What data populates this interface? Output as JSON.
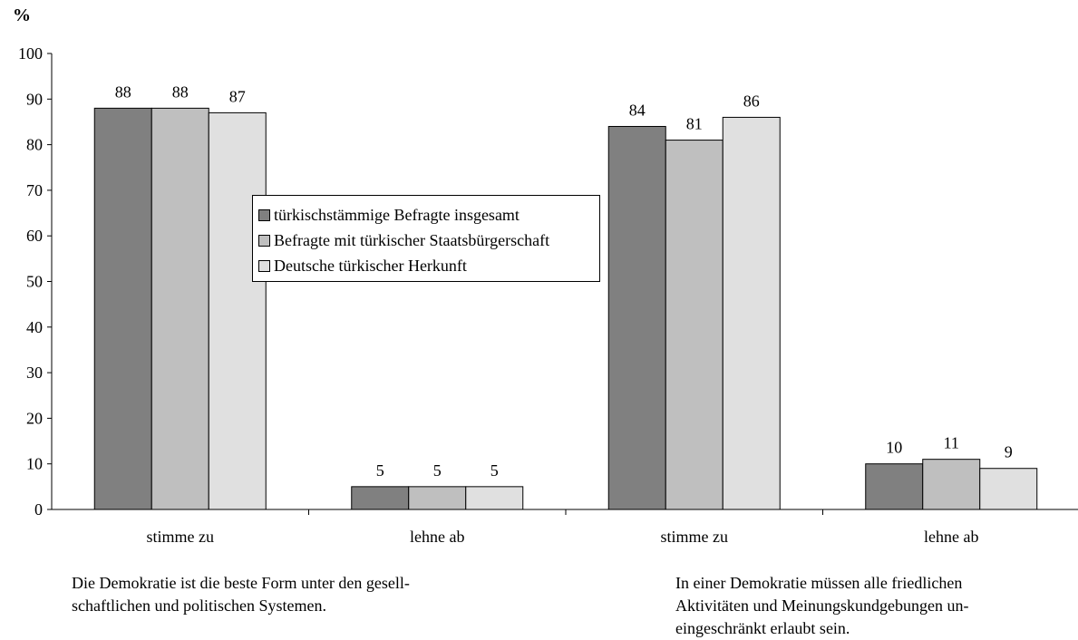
{
  "chart_data": {
    "type": "bar",
    "ylabel": "%",
    "ylim": [
      0,
      100
    ],
    "yticks": [
      "0",
      "10",
      "20",
      "30",
      "40",
      "50",
      "60",
      "70",
      "80",
      "90",
      "100"
    ],
    "categories": [
      "stimme zu",
      "lehne ab",
      "stimme zu",
      "lehne ab"
    ],
    "series": [
      {
        "name": "türkischstämmige Befragte insgesamt",
        "color": "#808080",
        "values": [
          88,
          5,
          84,
          10
        ]
      },
      {
        "name": "Befragte mit türkischer Staatsbürgerschaft",
        "color": "#bfbfbf",
        "values": [
          88,
          5,
          81,
          11
        ]
      },
      {
        "name": "Deutsche türkischer Herkunft",
        "color": "#e0e0e0",
        "values": [
          87,
          5,
          86,
          9
        ]
      }
    ],
    "legend_position": "center",
    "grid": false,
    "captions": [
      "Die Demokratie ist die beste Form unter den gesell-\nschaftlichen und politischen Systemen.",
      "In einer Demokratie müssen alle friedlichen\nAktivitäten und Meinungskundgebungen un-\neingeschränkt erlaubt sein."
    ]
  }
}
